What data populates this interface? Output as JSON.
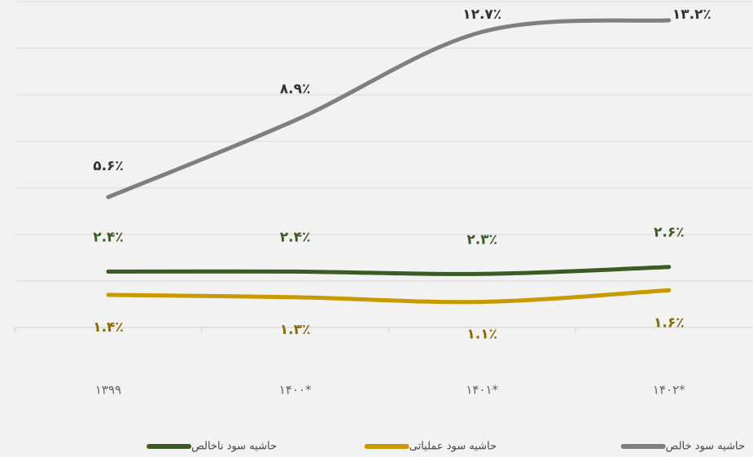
{
  "chart_data": {
    "type": "line",
    "categories": [
      "۱۳۹۹",
      "۱۴۰۰*",
      "۱۴۰۱*",
      "۱۴۰۲*"
    ],
    "series": [
      {
        "name": "حاشیه سود خالص",
        "color": "#7f7f7f",
        "values": [
          5.6,
          8.9,
          12.7,
          13.2
        ],
        "value_labels": [
          "۵.۶٪",
          "۸.۹٪",
          "۱۲.۷٪",
          "۱۳.۲٪"
        ]
      },
      {
        "name": "حاشیه سود عملیاتی",
        "color": "#c89a00",
        "values": [
          1.4,
          1.3,
          1.1,
          1.6
        ],
        "value_labels": [
          "۱.۴٪",
          "۱.۳٪",
          "۱.۱٪",
          "۱.۶٪"
        ]
      },
      {
        "name": "حاشیه سود ناخالص",
        "color": "#3b5a24",
        "values": [
          2.4,
          2.4,
          2.3,
          2.6
        ],
        "value_labels": [
          "۲.۴٪",
          "۲.۴٪",
          "۲.۳٪",
          "۲.۶٪"
        ]
      }
    ],
    "ylim": [
      0,
      14
    ],
    "yticks": [
      0,
      2,
      4,
      6,
      8,
      10,
      12,
      14
    ],
    "grid": true,
    "legend": "bottom"
  }
}
